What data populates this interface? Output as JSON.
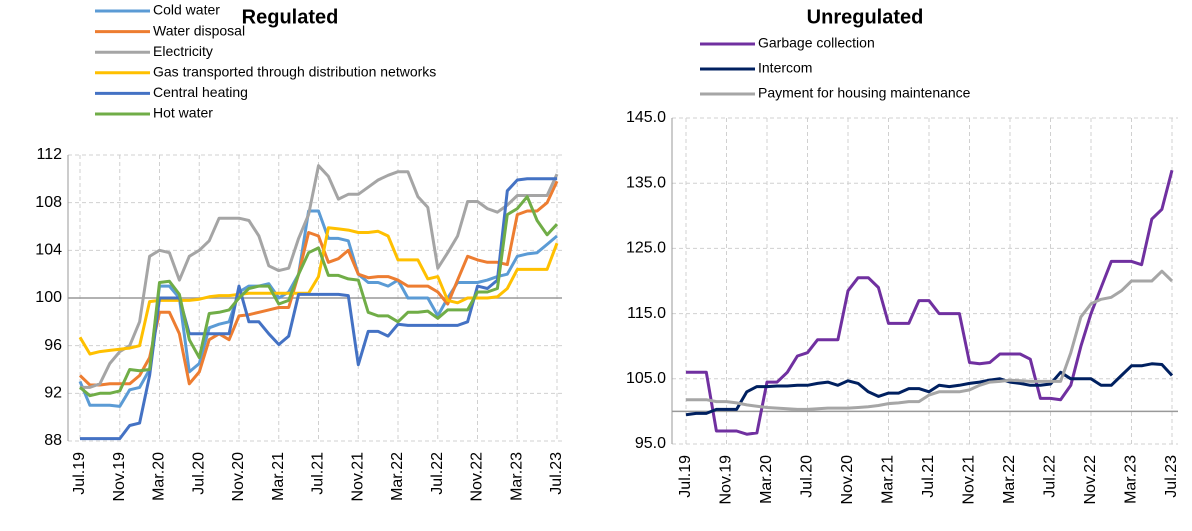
{
  "chart_data": [
    {
      "type": "line",
      "title": "Regulated",
      "categories": [
        "Jul.19",
        null,
        null,
        null,
        "Nov.19",
        null,
        null,
        null,
        "Mar.20",
        null,
        null,
        null,
        "Jul.20",
        null,
        null,
        null,
        "Nov.20",
        null,
        null,
        null,
        "Mar.21",
        null,
        null,
        null,
        "Jul.21",
        null,
        null,
        null,
        "Nov.21",
        null,
        null,
        null,
        "Mar.22",
        null,
        null,
        null,
        "Jul.22",
        null,
        null,
        null,
        "Nov.22",
        null,
        null,
        null,
        "Mar.23",
        null,
        null,
        null,
        "Jul.23"
      ],
      "ylim": [
        88,
        112
      ],
      "yticks": [
        88,
        92,
        96,
        100,
        104,
        108,
        112
      ],
      "grid": true,
      "x_axis_crosses": 100,
      "legend": "top-left",
      "series": [
        {
          "name": "Cold water",
          "color": "#5b9bd5",
          "values": [
            93.0,
            91.0,
            91.0,
            91.0,
            90.9,
            92.3,
            92.5,
            94.0,
            101.0,
            101.0,
            100.0,
            93.8,
            94.5,
            97.5,
            97.8,
            98.0,
            100.5,
            101.0,
            101.0,
            101.2,
            100.0,
            100.5,
            102.0,
            107.3,
            107.3,
            105.0,
            105.0,
            104.8,
            102.0,
            101.3,
            101.3,
            101.0,
            101.5,
            100.0,
            100.0,
            100.0,
            98.5,
            100.0,
            101.3,
            101.3,
            101.3,
            101.5,
            101.8,
            102.0,
            103.5,
            103.7,
            103.8,
            104.5,
            105.2
          ]
        },
        {
          "name": "Water disposal",
          "color": "#ed7d31",
          "values": [
            93.5,
            92.7,
            92.7,
            92.8,
            92.8,
            92.8,
            93.5,
            95.0,
            98.8,
            98.8,
            97.0,
            92.8,
            93.8,
            96.5,
            97.0,
            96.5,
            98.5,
            98.6,
            98.8,
            99.0,
            99.2,
            99.2,
            102.0,
            105.5,
            105.2,
            103.0,
            103.3,
            104.0,
            102.0,
            101.7,
            101.8,
            101.8,
            101.5,
            101.0,
            101.0,
            101.0,
            100.5,
            99.5,
            101.5,
            103.5,
            103.2,
            103.0,
            103.0,
            102.8,
            107.0,
            107.3,
            107.3,
            108.0,
            109.8
          ]
        },
        {
          "name": "Electricity",
          "color": "#a5a5a5",
          "values": [
            92.5,
            92.5,
            92.8,
            94.5,
            95.5,
            96.0,
            98.0,
            103.5,
            104.0,
            103.8,
            101.5,
            103.5,
            104.0,
            104.8,
            106.7,
            106.7,
            106.7,
            106.5,
            105.2,
            102.7,
            102.3,
            102.5,
            105.0,
            107.0,
            111.1,
            110.2,
            108.3,
            108.7,
            108.7,
            109.3,
            109.9,
            110.3,
            110.6,
            110.6,
            108.5,
            107.6,
            102.5,
            103.8,
            105.2,
            108.1,
            108.1,
            107.5,
            107.2,
            107.8,
            108.6,
            108.6,
            108.6,
            108.6,
            110.4
          ]
        },
        {
          "name": "Gas transported through distribution networks",
          "color": "#ffc000",
          "values": [
            96.7,
            95.3,
            95.5,
            95.6,
            95.7,
            95.8,
            96.0,
            99.7,
            99.8,
            99.8,
            99.8,
            99.8,
            99.9,
            100.1,
            100.2,
            100.2,
            100.3,
            100.4,
            100.4,
            100.4,
            100.4,
            100.4,
            100.4,
            100.4,
            101.8,
            105.9,
            105.8,
            105.7,
            105.5,
            105.5,
            105.6,
            105.2,
            103.2,
            103.2,
            103.2,
            101.6,
            101.8,
            99.8,
            99.6,
            100.0,
            100.0,
            100.0,
            100.1,
            100.8,
            102.4,
            102.4,
            102.4,
            102.4,
            104.6
          ]
        },
        {
          "name": "Central heating",
          "color": "#4472c4",
          "values": [
            88.2,
            88.2,
            88.2,
            88.2,
            88.2,
            89.3,
            89.5,
            93.5,
            100.0,
            100.0,
            100.0,
            97.0,
            97.0,
            97.0,
            97.0,
            97.0,
            101.0,
            98.0,
            98.0,
            97.0,
            96.1,
            96.8,
            100.3,
            100.3,
            100.3,
            100.3,
            100.3,
            100.2,
            94.4,
            97.2,
            97.2,
            96.8,
            97.8,
            97.7,
            97.7,
            97.7,
            97.7,
            97.7,
            97.7,
            98.0,
            101.0,
            100.8,
            101.5,
            109.0,
            109.9,
            110.0,
            110.0,
            110.0,
            110.0
          ]
        },
        {
          "name": "Hot water",
          "color": "#70ad47",
          "values": [
            92.5,
            91.8,
            92.0,
            92.0,
            92.2,
            94.0,
            93.9,
            94.0,
            101.3,
            101.4,
            100.3,
            96.5,
            95.0,
            98.7,
            98.8,
            99.0,
            100.0,
            100.8,
            101.0,
            101.0,
            99.5,
            99.8,
            102.0,
            103.8,
            104.2,
            101.9,
            101.9,
            101.6,
            101.5,
            98.8,
            98.5,
            98.5,
            98.0,
            98.8,
            98.8,
            98.9,
            98.3,
            99.0,
            99.0,
            99.0,
            100.5,
            100.5,
            100.8,
            107.0,
            107.5,
            108.5,
            106.5,
            105.3,
            106.2
          ]
        }
      ]
    },
    {
      "type": "line",
      "title": "Unregulated",
      "categories": [
        "Jul.19",
        null,
        null,
        null,
        "Nov.19",
        null,
        null,
        null,
        "Mar.20",
        null,
        null,
        null,
        "Jul.20",
        null,
        null,
        null,
        "Nov.20",
        null,
        null,
        null,
        "Mar.21",
        null,
        null,
        null,
        "Jul.21",
        null,
        null,
        null,
        "Nov.21",
        null,
        null,
        null,
        "Mar.22",
        null,
        null,
        null,
        "Jul.22",
        null,
        null,
        null,
        "Nov.22",
        null,
        null,
        null,
        "Mar.23",
        null,
        null,
        null,
        "Jul.23"
      ],
      "ylim": [
        95,
        145
      ],
      "yticks": [
        {
          "value": 95,
          "label": "95.0"
        },
        {
          "value": 105,
          "label": "105.0"
        },
        {
          "value": 115,
          "label": "115.0"
        },
        {
          "value": 125,
          "label": "125.0"
        },
        {
          "value": 135,
          "label": "135.0"
        },
        {
          "value": 145,
          "label": "145.0"
        }
      ],
      "grid": true,
      "x_axis_crosses": 100,
      "legend": "top",
      "series": [
        {
          "name": "Garbage collection",
          "color": "#7030a0",
          "values": [
            106,
            106,
            106,
            97,
            97,
            97,
            96.5,
            96.7,
            104.5,
            104.5,
            106,
            108.5,
            109,
            111,
            111,
            111,
            118.5,
            120.5,
            120.5,
            119,
            113.5,
            113.5,
            113.5,
            117,
            117,
            115,
            115,
            115,
            107.5,
            107.3,
            107.5,
            108.8,
            108.8,
            108.8,
            108,
            102,
            102,
            101.8,
            104,
            110,
            115,
            119,
            123,
            123,
            123,
            122.5,
            129.5,
            131,
            137
          ]
        },
        {
          "name": "Intercom",
          "color": "#002060",
          "values": [
            99.5,
            99.7,
            99.7,
            100.3,
            100.3,
            100.3,
            103,
            103.8,
            103.8,
            103.9,
            103.9,
            104,
            104,
            104.3,
            104.5,
            104,
            104.7,
            104.3,
            103,
            102.3,
            102.8,
            102.8,
            103.5,
            103.5,
            103,
            104,
            103.8,
            104,
            104.3,
            104.5,
            104.8,
            105,
            104.5,
            104.3,
            104,
            104,
            104.2,
            106,
            105,
            105,
            105,
            104,
            104,
            105.5,
            107,
            107,
            107.3,
            107.2,
            105.5
          ]
        },
        {
          "name": "Payment for housing maintenance",
          "color": "#a6a6a6",
          "values": [
            101.8,
            101.8,
            101.8,
            101.5,
            101.5,
            101.3,
            101,
            100.8,
            100.6,
            100.5,
            100.4,
            100.3,
            100.3,
            100.4,
            100.5,
            100.5,
            100.5,
            100.6,
            100.7,
            100.9,
            101.2,
            101.3,
            101.5,
            101.5,
            102.5,
            103,
            103,
            103,
            103.3,
            104,
            104.5,
            104.6,
            104.8,
            104.7,
            104.6,
            104.6,
            104.6,
            104.6,
            109,
            114.5,
            116.5,
            117.2,
            117.5,
            118.5,
            120,
            120,
            120,
            121.5,
            120
          ]
        }
      ]
    }
  ]
}
